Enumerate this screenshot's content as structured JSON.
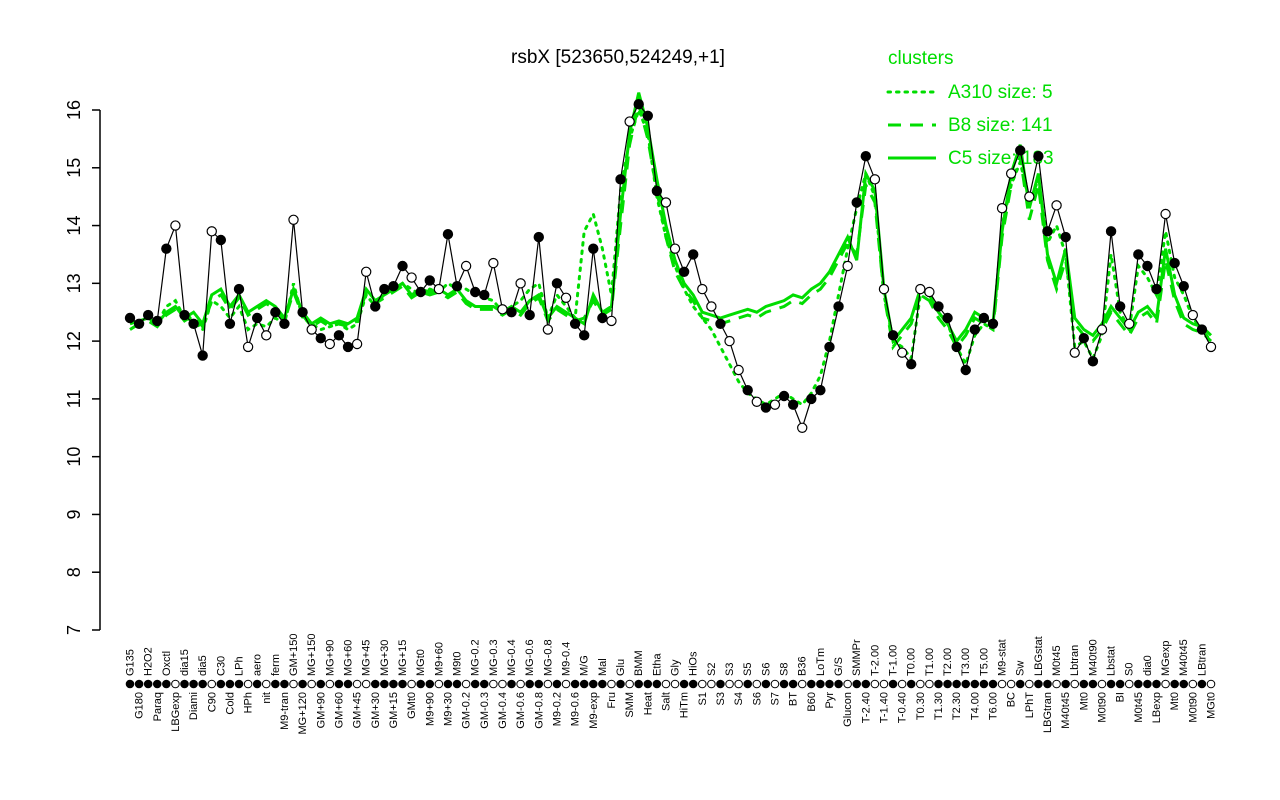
{
  "title": "rsbX [523650,524249,+1]",
  "legend": {
    "header": "clusters",
    "entries": [
      {
        "label": "A310 size: 5",
        "style": "dotted"
      },
      {
        "label": "B8 size: 141",
        "style": "dashed"
      },
      {
        "label": "C5 size: 183",
        "style": "solid"
      }
    ]
  },
  "colors": {
    "cluster": "#00dd00",
    "gene": "#000000",
    "background": "#ffffff"
  },
  "axis": {
    "y_min": 7,
    "y_max": 16
  },
  "chart_data": {
    "type": "line",
    "title": "rsbX [523650,524249,+1]",
    "xlabel": "",
    "ylabel": "",
    "ylim": [
      7,
      16
    ],
    "yticks": [
      7,
      8,
      9,
      10,
      11,
      12,
      13,
      14,
      15,
      16
    ],
    "grid": false,
    "legend_position": "top-right",
    "categories": [
      "G135",
      "G180",
      "H2O2",
      "Paraq",
      "Oxctl",
      "LBGexp",
      "dia15",
      "Diami",
      "dia5",
      "C90",
      "C30",
      "Cold",
      "LPh",
      "HPh",
      "aero",
      "nit",
      "ferm",
      "M9-tran",
      "GM+150",
      "MG+120",
      "MG+150",
      "GM+90",
      "MG+90",
      "GM+60",
      "MG+60",
      "GM+45",
      "MG+45",
      "GM+30",
      "MG+30",
      "GM+15",
      "MG+15",
      "GMt0",
      "MGt0",
      "M9+90",
      "M9+60",
      "M9+30",
      "M9t0",
      "GM-0.2",
      "MG-0.2",
      "GM-0.3",
      "MG-0.3",
      "GM-0.4",
      "MG-0.4",
      "GM-0.6",
      "MG-0.6",
      "GM-0.8",
      "MG-0.8",
      "M9-0.2",
      "M9-0.4",
      "M9-0.6",
      "M/G",
      "M9-exp",
      "Mal",
      "Fru",
      "Glu",
      "SMM",
      "BMM",
      "Heat",
      "Etha",
      "Salt",
      "Gly",
      "HiTm",
      "HiOs",
      "S1",
      "S2",
      "S3",
      "S3",
      "S4",
      "S5",
      "S6",
      "S6",
      "S7",
      "S8",
      "BT",
      "B36",
      "B60",
      "LoTm",
      "Pyr",
      "G/S",
      "Glucon",
      "SMMPr",
      "T-2.40",
      "T-2.00",
      "T-1.40",
      "T-1.00",
      "T-0.40",
      "T0.00",
      "T0.30",
      "T1.00",
      "T1.30",
      "T2.00",
      "T2.30",
      "T3.00",
      "T4.00",
      "T5.00",
      "T6.00",
      "M9-stat",
      "BC",
      "Sw",
      "LPhT",
      "LBGstat",
      "LBGtran",
      "M0t45",
      "M40t45",
      "Lbtran",
      "Mt0",
      "M40t90",
      "M0t90",
      "Lbstat",
      "BI",
      "S0",
      "M0t45",
      "dia0",
      "LBexp",
      "MGexp",
      "Mt0",
      "M40t45",
      "M0t90",
      "LBtran",
      "MGt0"
    ],
    "markers": "fffffofffofffofoffofofoffooffffoffoffoffoofoffofoffffofofffooffoofoofofoffoffffoffoofofoofffffffoofoffofoffoffofffoffofoff",
    "series": [
      {
        "name": "rsbX",
        "color": "#000000",
        "dash": "solid",
        "marker": "circle",
        "values": [
          12.4,
          12.3,
          12.45,
          12.35,
          13.6,
          14.0,
          12.45,
          12.3,
          11.75,
          13.9,
          13.75,
          12.3,
          12.9,
          11.9,
          12.4,
          12.1,
          12.5,
          12.3,
          14.1,
          12.5,
          12.2,
          12.05,
          11.95,
          12.1,
          11.9,
          11.95,
          13.2,
          12.6,
          12.9,
          12.95,
          13.3,
          13.1,
          12.85,
          13.05,
          12.9,
          13.85,
          12.95,
          13.3,
          12.85,
          12.8,
          13.35,
          12.55,
          12.5,
          13.0,
          12.45,
          13.8,
          12.2,
          13.0,
          12.75,
          12.3,
          12.1,
          13.6,
          12.4,
          12.35,
          14.8,
          15.8,
          16.1,
          15.9,
          14.6,
          14.4,
          13.6,
          13.2,
          13.5,
          12.9,
          12.6,
          12.3,
          12.0,
          11.5,
          11.15,
          10.95,
          10.85,
          10.9,
          11.05,
          10.9,
          10.5,
          11.0,
          11.15,
          11.9,
          12.6,
          13.3,
          14.4,
          15.2,
          14.8,
          12.9,
          12.1,
          11.8,
          11.6,
          12.9,
          12.85,
          12.6,
          12.4,
          11.9,
          11.5,
          12.2,
          12.4,
          12.3,
          14.3,
          14.9,
          15.3,
          14.5,
          15.2,
          13.9,
          14.35,
          13.8,
          11.8,
          12.05,
          11.65,
          12.2,
          13.9,
          12.6,
          12.3,
          13.5,
          13.3,
          12.9,
          14.2,
          13.35,
          12.95,
          12.45,
          12.2,
          11.9
        ]
      },
      {
        "name": "A310 size: 5",
        "color": "#00dd00",
        "dash": "dotted",
        "marker": "none",
        "values": [
          12.4,
          12.35,
          12.4,
          12.3,
          12.6,
          12.7,
          12.4,
          12.35,
          12.2,
          12.7,
          12.6,
          12.4,
          12.6,
          12.2,
          12.3,
          12.25,
          12.4,
          12.3,
          13.0,
          12.4,
          12.3,
          12.2,
          12.25,
          12.3,
          12.2,
          12.3,
          12.8,
          12.6,
          12.8,
          12.9,
          13.0,
          12.9,
          12.8,
          12.9,
          12.85,
          13.0,
          12.9,
          12.9,
          12.8,
          12.75,
          12.7,
          12.5,
          12.6,
          12.7,
          12.9,
          13.0,
          12.4,
          12.8,
          12.6,
          12.4,
          13.9,
          14.2,
          13.6,
          12.8,
          14.6,
          15.5,
          16.0,
          15.6,
          14.5,
          13.8,
          13.3,
          12.9,
          12.6,
          12.4,
          12.2,
          11.9,
          11.6,
          11.3,
          11.1,
          11.0,
          10.9,
          11.0,
          11.1,
          11.0,
          10.9,
          11.1,
          11.4,
          12.0,
          12.8,
          13.6,
          14.3,
          14.9,
          14.5,
          12.8,
          12.0,
          11.9,
          11.7,
          12.8,
          12.7,
          12.5,
          12.3,
          11.9,
          11.6,
          12.1,
          12.3,
          12.2,
          14.0,
          14.7,
          15.1,
          14.4,
          14.8,
          13.7,
          14.0,
          13.5,
          11.9,
          12.0,
          11.7,
          12.1,
          13.5,
          12.5,
          12.2,
          13.3,
          13.1,
          12.8,
          13.9,
          13.1,
          12.8,
          12.4,
          12.2,
          12.0
        ]
      },
      {
        "name": "B8 size: 141",
        "color": "#00dd00",
        "dash": "dashed",
        "marker": "none",
        "values": [
          12.2,
          12.3,
          12.35,
          12.25,
          12.45,
          12.55,
          12.35,
          12.45,
          12.25,
          12.7,
          12.8,
          12.55,
          12.75,
          12.45,
          12.55,
          12.65,
          12.55,
          12.35,
          12.85,
          12.45,
          12.25,
          12.35,
          12.25,
          12.3,
          12.25,
          12.35,
          12.85,
          12.65,
          12.75,
          12.85,
          12.95,
          12.75,
          12.85,
          12.8,
          12.85,
          12.75,
          12.85,
          12.65,
          12.55,
          12.55,
          12.55,
          12.45,
          12.55,
          12.45,
          12.65,
          12.75,
          12.35,
          12.55,
          12.45,
          12.35,
          12.4,
          12.7,
          12.45,
          12.55,
          14.0,
          15.4,
          16.1,
          15.5,
          14.6,
          13.8,
          13.2,
          12.9,
          12.7,
          12.4,
          12.35,
          12.3,
          12.35,
          12.4,
          12.45,
          12.4,
          12.5,
          12.55,
          12.6,
          12.7,
          12.65,
          12.8,
          12.9,
          13.1,
          13.4,
          13.7,
          13.5,
          14.7,
          14.4,
          12.8,
          11.9,
          12.1,
          12.3,
          12.8,
          12.7,
          12.4,
          12.2,
          11.9,
          12.1,
          12.4,
          12.3,
          12.2,
          13.8,
          14.7,
          15.2,
          14.1,
          14.7,
          13.4,
          12.9,
          13.4,
          12.3,
          12.1,
          12.0,
          12.2,
          12.5,
          12.3,
          12.1,
          12.4,
          12.5,
          12.3,
          13.4,
          12.7,
          12.3,
          12.2,
          12.15,
          12.0
        ]
      },
      {
        "name": "C5 size: 183",
        "color": "#00dd00",
        "dash": "solid",
        "marker": "none",
        "values": [
          12.3,
          12.35,
          12.4,
          12.3,
          12.5,
          12.6,
          12.4,
          12.5,
          12.3,
          12.8,
          12.9,
          12.6,
          12.8,
          12.5,
          12.6,
          12.7,
          12.6,
          12.4,
          12.9,
          12.5,
          12.3,
          12.4,
          12.3,
          12.35,
          12.3,
          12.4,
          12.9,
          12.7,
          12.8,
          12.9,
          13.0,
          12.8,
          12.9,
          12.85,
          12.9,
          12.8,
          12.9,
          12.7,
          12.6,
          12.6,
          12.6,
          12.5,
          12.6,
          12.5,
          12.7,
          12.8,
          12.4,
          12.6,
          12.5,
          12.4,
          12.3,
          12.8,
          12.5,
          12.6,
          14.2,
          15.6,
          16.3,
          15.7,
          14.8,
          14.0,
          13.4,
          13.0,
          12.8,
          12.5,
          12.45,
          12.4,
          12.45,
          12.5,
          12.55,
          12.5,
          12.6,
          12.65,
          12.7,
          12.8,
          12.75,
          12.9,
          13.0,
          13.2,
          13.5,
          13.8,
          13.4,
          14.9,
          14.6,
          12.9,
          12.0,
          12.2,
          12.4,
          12.9,
          12.8,
          12.5,
          12.3,
          12.0,
          12.2,
          12.5,
          12.4,
          12.3,
          13.9,
          14.9,
          15.4,
          14.3,
          14.9,
          13.5,
          13.0,
          13.6,
          12.4,
          12.2,
          12.1,
          12.3,
          12.6,
          12.4,
          12.2,
          12.5,
          12.6,
          12.4,
          13.6,
          12.8,
          12.4,
          12.3,
          12.25,
          12.1
        ]
      }
    ]
  }
}
